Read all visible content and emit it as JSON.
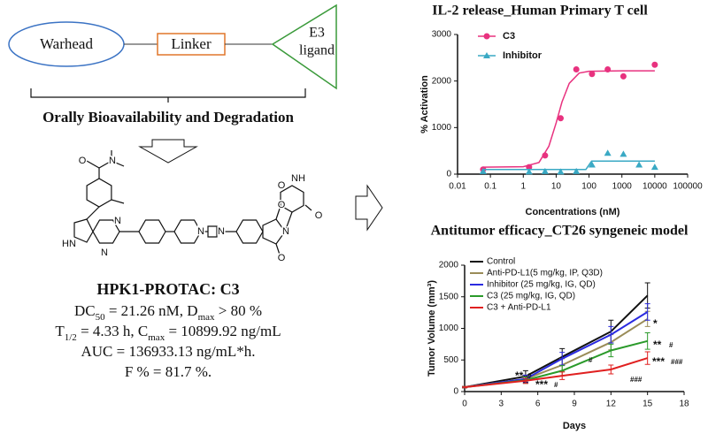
{
  "diagram": {
    "warhead": "Warhead",
    "linker": "Linker",
    "e3_ligand": [
      "E3",
      "ligand"
    ],
    "caption": "Orally Bioavailability and Degradation"
  },
  "structure": {
    "atom_labels": [
      "O",
      "N",
      "HN",
      "N",
      "N",
      "N",
      "N",
      "O",
      "N",
      "O",
      "O",
      "NH",
      "O"
    ]
  },
  "compound": {
    "name": "HPK1-PROTAC: C3",
    "properties": [
      [
        "DC",
        "50",
        " = 21.26 nM, D",
        "max",
        " > 80 %"
      ],
      [
        "T",
        "1/2",
        " = 4.33 h, C",
        "max",
        " = 10899.92 ng/mL"
      ],
      [
        "AUC = 136933.13 ng/mL*h."
      ],
      [
        "F % = 81.7 %."
      ]
    ]
  },
  "chart_data": [
    {
      "type": "scatter",
      "title": "IL-2 release_Human Primary T cell",
      "x_label": "Concentrations (nM)",
      "y_label": "% Activation",
      "xscale": "log",
      "xlim": [
        0.01,
        100000
      ],
      "xticks": [
        0.01,
        0.1,
        1,
        10,
        100,
        1000,
        10000,
        100000
      ],
      "ylim": [
        0,
        3000
      ],
      "yticks": [
        0,
        1000,
        2000,
        3000
      ],
      "legend": "top-left",
      "series": [
        {
          "name": "C3",
          "color": "#e8327f",
          "marker": "circle",
          "x": [
            0.06,
            1.5,
            4.6,
            13.7,
            41,
            123,
            370,
            1111,
            10000
          ],
          "values": [
            100,
            150,
            400,
            1200,
            2250,
            2150,
            2250,
            2100,
            2350
          ],
          "fit_x": [
            0.06,
            1,
            3,
            6,
            10,
            15,
            25,
            50,
            100,
            1000,
            10000
          ],
          "fit_values": [
            150,
            160,
            250,
            600,
            1100,
            1550,
            1950,
            2170,
            2210,
            2220,
            2220
          ]
        },
        {
          "name": "Inhibitor",
          "color": "#3aa9c4",
          "marker": "triangle",
          "x": [
            0.06,
            1.5,
            4.6,
            13.7,
            41,
            123,
            370,
            1111,
            3333,
            10000
          ],
          "values": [
            60,
            50,
            60,
            50,
            60,
            200,
            450,
            430,
            200,
            150
          ],
          "fit_x": [
            0.06,
            80,
            120,
            10000
          ],
          "fit_values": [
            100,
            100,
            280,
            280
          ]
        }
      ]
    },
    {
      "type": "line",
      "title": "Antitumor efficacy_CT26 syngeneic model",
      "x_label": "Days",
      "y_label": "Tumor Volume (mm³)",
      "x": [
        0,
        5,
        8,
        12,
        15
      ],
      "xlim": [
        0,
        18
      ],
      "xticks": [
        0,
        3,
        6,
        9,
        12,
        15,
        18
      ],
      "ylim": [
        0,
        2000
      ],
      "yticks": [
        0,
        500,
        1000,
        1500,
        2000
      ],
      "legend": "top-left",
      "series": [
        {
          "name": "Control",
          "color": "#111111",
          "values": [
            70,
            240,
            550,
            950,
            1520
          ],
          "errors": [
            10,
            90,
            130,
            180,
            200
          ]
        },
        {
          "name": "Anti-PD-L1(5 mg/kg, IP, Q3D)",
          "color": "#9a8c58",
          "values": [
            70,
            200,
            420,
            780,
            1150
          ],
          "errors": [
            10,
            60,
            100,
            120,
            120
          ]
        },
        {
          "name": "Inhibitor (25 mg/kg, IG, QD)",
          "color": "#2b2be0",
          "values": [
            70,
            200,
            520,
            900,
            1260
          ],
          "errors": [
            10,
            60,
            100,
            130,
            130
          ]
        },
        {
          "name": "C3 (25 mg/kg, IG, QD)",
          "color": "#2a9a2a",
          "values": [
            70,
            180,
            330,
            650,
            800
          ],
          "errors": [
            10,
            50,
            80,
            100,
            130
          ]
        },
        {
          "name": "C3 + Anti-PD-L1",
          "color": "#e02020",
          "values": [
            70,
            170,
            250,
            350,
            530
          ],
          "errors": [
            10,
            40,
            60,
            70,
            100
          ]
        }
      ],
      "annotations": [
        "*",
        "**",
        "#",
        "***",
        "###",
        "**",
        "#",
        "***",
        "#",
        "#",
        "###"
      ]
    }
  ]
}
